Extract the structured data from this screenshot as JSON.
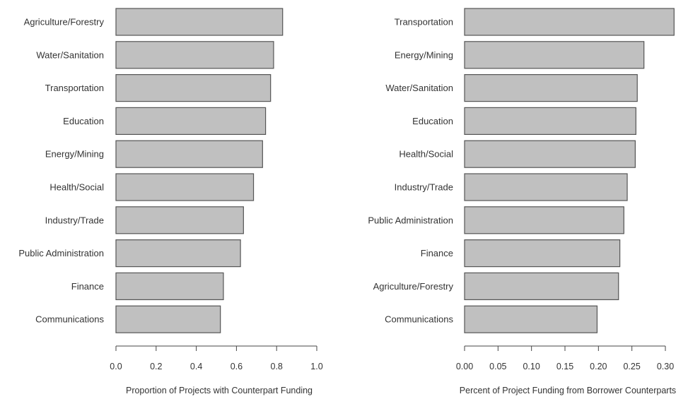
{
  "chart_data": [
    {
      "type": "bar",
      "orientation": "horizontal",
      "categories": [
        "Agriculture/Forestry",
        "Water/Sanitation",
        "Transportation",
        "Education",
        "Energy/Mining",
        "Health/Social",
        "Industry/Trade",
        "Public Administration",
        "Finance",
        "Communications"
      ],
      "values": [
        0.83,
        0.785,
        0.77,
        0.745,
        0.73,
        0.685,
        0.635,
        0.62,
        0.535,
        0.52
      ],
      "xlabel": "Proportion of Projects with Counterpart Funding",
      "xlim": [
        0,
        1.0
      ],
      "ticks": [
        0.0,
        0.2,
        0.4,
        0.6,
        0.8,
        1.0
      ],
      "tick_labels": [
        "0.0",
        "0.2",
        "0.4",
        "0.6",
        "0.8",
        "1.0"
      ],
      "grid": false,
      "bar_color": "#c0c0c0"
    },
    {
      "type": "bar",
      "orientation": "horizontal",
      "categories": [
        "Transportation",
        "Energy/Mining",
        "Water/Sanitation",
        "Education",
        "Health/Social",
        "Industry/Trade",
        "Public Administration",
        "Finance",
        "Agriculture/Forestry",
        "Communications"
      ],
      "values": [
        0.313,
        0.268,
        0.258,
        0.256,
        0.255,
        0.243,
        0.238,
        0.232,
        0.23,
        0.198
      ],
      "xlabel": "Percent of Project Funding from Borrower Counterparts",
      "xlim": [
        0,
        0.3
      ],
      "ticks": [
        0.0,
        0.05,
        0.1,
        0.15,
        0.2,
        0.25,
        0.3
      ],
      "tick_labels": [
        "0.00",
        "0.05",
        "0.10",
        "0.15",
        "0.20",
        "0.25",
        "0.30"
      ],
      "grid": false,
      "bar_color": "#c0c0c0"
    }
  ]
}
